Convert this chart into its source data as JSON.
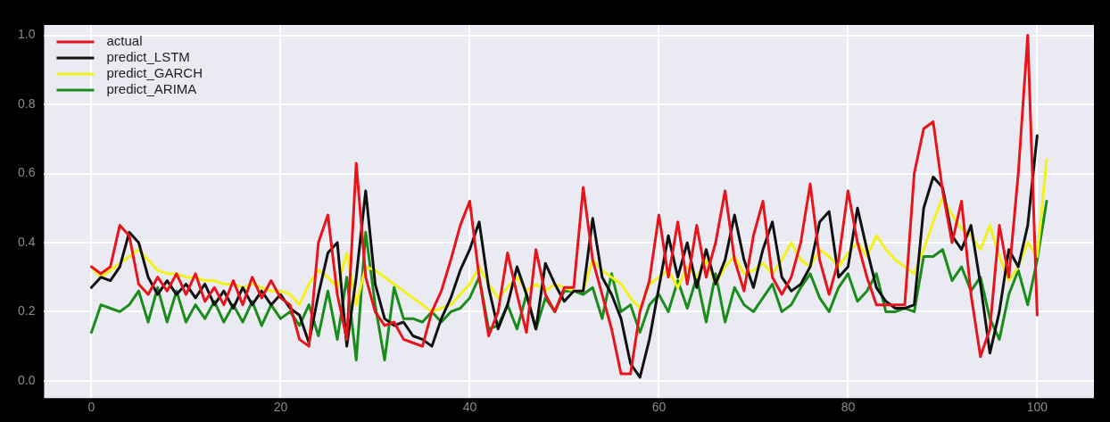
{
  "chart_data": {
    "type": "line",
    "x": [
      0,
      1,
      2,
      3,
      4,
      5,
      6,
      7,
      8,
      9,
      10,
      11,
      12,
      13,
      14,
      15,
      16,
      17,
      18,
      19,
      20,
      21,
      22,
      23,
      24,
      25,
      26,
      27,
      28,
      29,
      30,
      31,
      32,
      33,
      34,
      35,
      36,
      37,
      38,
      39,
      40,
      41,
      42,
      43,
      44,
      45,
      46,
      47,
      48,
      49,
      50,
      51,
      52,
      53,
      54,
      55,
      56,
      57,
      58,
      59,
      60,
      61,
      62,
      63,
      64,
      65,
      66,
      67,
      68,
      69,
      70,
      71,
      72,
      73,
      74,
      75,
      76,
      77,
      78,
      79,
      80,
      81,
      82,
      83,
      84,
      85,
      86,
      87,
      88,
      89,
      90,
      91,
      92,
      93,
      94,
      95,
      96,
      97,
      98,
      99,
      100,
      101
    ],
    "xlim": [
      -5,
      106
    ],
    "xticks": [
      0,
      20,
      40,
      60,
      80,
      100
    ],
    "ylim": [
      -0.05,
      1.03
    ],
    "yticks": [
      {
        "value": 0,
        "label": "0.0"
      },
      {
        "value": 0.2,
        "label": "0.2"
      },
      {
        "value": 0.4,
        "label": "0.4"
      },
      {
        "value": 0.6,
        "label": "0.6"
      },
      {
        "value": 0.8,
        "label": "0.8"
      },
      {
        "value": 1,
        "label": "1.0"
      }
    ],
    "grid": true,
    "legend": "top left",
    "marker": "none",
    "line_style": "solid",
    "series": [
      {
        "name": "actual",
        "color": "#e8141b",
        "values": [
          0.33,
          0.31,
          0.33,
          0.45,
          0.42,
          0.28,
          0.25,
          0.3,
          0.26,
          0.31,
          0.25,
          0.31,
          0.23,
          0.27,
          0.22,
          0.29,
          0.22,
          0.3,
          0.24,
          0.29,
          0.24,
          0.22,
          0.12,
          0.1,
          0.4,
          0.48,
          0.25,
          0.12,
          0.63,
          0.3,
          0.2,
          0.16,
          0.17,
          0.12,
          0.11,
          0.1,
          0.2,
          0.26,
          0.35,
          0.45,
          0.52,
          0.3,
          0.13,
          0.2,
          0.37,
          0.25,
          0.14,
          0.38,
          0.25,
          0.2,
          0.27,
          0.27,
          0.56,
          0.35,
          0.25,
          0.15,
          0.02,
          0.02,
          0.2,
          0.29,
          0.48,
          0.3,
          0.46,
          0.28,
          0.45,
          0.3,
          0.4,
          0.55,
          0.35,
          0.26,
          0.42,
          0.52,
          0.3,
          0.25,
          0.3,
          0.4,
          0.57,
          0.35,
          0.25,
          0.35,
          0.55,
          0.4,
          0.3,
          0.22,
          0.22,
          0.22,
          0.22,
          0.6,
          0.73,
          0.75,
          0.55,
          0.4,
          0.52,
          0.25,
          0.07,
          0.15,
          0.45,
          0.3,
          0.6,
          1.0,
          0.19,
          null
        ]
      },
      {
        "name": "predict_LSTM",
        "color": "#111111",
        "values": [
          0.27,
          0.3,
          0.29,
          0.33,
          0.43,
          0.4,
          0.3,
          0.25,
          0.29,
          0.25,
          0.28,
          0.24,
          0.28,
          0.22,
          0.26,
          0.21,
          0.27,
          0.22,
          0.26,
          0.22,
          0.25,
          0.21,
          0.19,
          0.11,
          0.25,
          0.37,
          0.4,
          0.1,
          0.3,
          0.55,
          0.28,
          0.18,
          0.16,
          0.17,
          0.13,
          0.12,
          0.1,
          0.18,
          0.24,
          0.32,
          0.38,
          0.46,
          0.27,
          0.15,
          0.22,
          0.33,
          0.25,
          0.15,
          0.34,
          0.28,
          0.23,
          0.26,
          0.26,
          0.47,
          0.3,
          0.25,
          0.18,
          0.05,
          0.01,
          0.12,
          0.27,
          0.42,
          0.3,
          0.4,
          0.27,
          0.38,
          0.28,
          0.35,
          0.48,
          0.35,
          0.27,
          0.38,
          0.46,
          0.3,
          0.26,
          0.28,
          0.33,
          0.46,
          0.49,
          0.3,
          0.33,
          0.5,
          0.38,
          0.27,
          0.23,
          0.21,
          0.21,
          0.22,
          0.5,
          0.59,
          0.56,
          0.42,
          0.38,
          0.45,
          0.28,
          0.08,
          0.2,
          0.38,
          0.33,
          0.45,
          0.71,
          null
        ]
      },
      {
        "name": "predict_GARCH",
        "color": "#f2f21a",
        "values": [
          0.33,
          0.3,
          0.32,
          0.34,
          0.36,
          0.38,
          0.35,
          0.32,
          0.31,
          0.31,
          0.3,
          0.3,
          0.29,
          0.29,
          0.28,
          0.28,
          0.27,
          0.28,
          0.27,
          0.26,
          0.26,
          0.25,
          0.22,
          0.28,
          0.32,
          0.3,
          0.27,
          0.37,
          0.22,
          0.33,
          0.32,
          0.3,
          0.28,
          0.26,
          0.24,
          0.22,
          0.2,
          0.21,
          0.22,
          0.25,
          0.28,
          0.33,
          0.28,
          0.24,
          0.27,
          0.3,
          0.26,
          0.28,
          0.26,
          0.28,
          0.27,
          0.26,
          0.26,
          0.35,
          0.32,
          0.3,
          0.28,
          0.24,
          0.21,
          0.28,
          0.3,
          0.32,
          0.27,
          0.33,
          0.3,
          0.35,
          0.28,
          0.33,
          0.36,
          0.31,
          0.32,
          0.34,
          0.31,
          0.35,
          0.4,
          0.35,
          0.33,
          0.38,
          0.36,
          0.33,
          0.37,
          0.4,
          0.36,
          0.42,
          0.38,
          0.35,
          0.33,
          0.31,
          0.38,
          0.46,
          0.53,
          0.48,
          0.44,
          0.42,
          0.38,
          0.45,
          0.36,
          0.29,
          0.33,
          0.4,
          0.36,
          0.64
        ]
      },
      {
        "name": "predict_ARIMA",
        "color": "#1a8c1a",
        "values": [
          0.14,
          0.22,
          0.21,
          0.2,
          0.22,
          0.26,
          0.17,
          0.27,
          0.17,
          0.26,
          0.17,
          0.22,
          0.18,
          0.23,
          0.17,
          0.22,
          0.17,
          0.23,
          0.16,
          0.22,
          0.18,
          0.2,
          0.16,
          0.22,
          0.13,
          0.26,
          0.12,
          0.3,
          0.06,
          0.43,
          0.22,
          0.06,
          0.27,
          0.18,
          0.18,
          0.17,
          0.2,
          0.17,
          0.2,
          0.21,
          0.24,
          0.3,
          0.15,
          0.16,
          0.22,
          0.15,
          0.25,
          0.15,
          0.24,
          0.2,
          0.26,
          0.26,
          0.25,
          0.27,
          0.18,
          0.31,
          0.2,
          0.22,
          0.14,
          0.22,
          0.25,
          0.2,
          0.29,
          0.21,
          0.3,
          0.17,
          0.31,
          0.17,
          0.27,
          0.22,
          0.2,
          0.24,
          0.28,
          0.2,
          0.22,
          0.27,
          0.31,
          0.24,
          0.2,
          0.27,
          0.31,
          0.23,
          0.26,
          0.31,
          0.2,
          0.2,
          0.21,
          0.2,
          0.36,
          0.36,
          0.38,
          0.29,
          0.33,
          0.26,
          0.3,
          0.18,
          0.12,
          0.25,
          0.32,
          0.22,
          0.35,
          0.52
        ]
      }
    ]
  }
}
